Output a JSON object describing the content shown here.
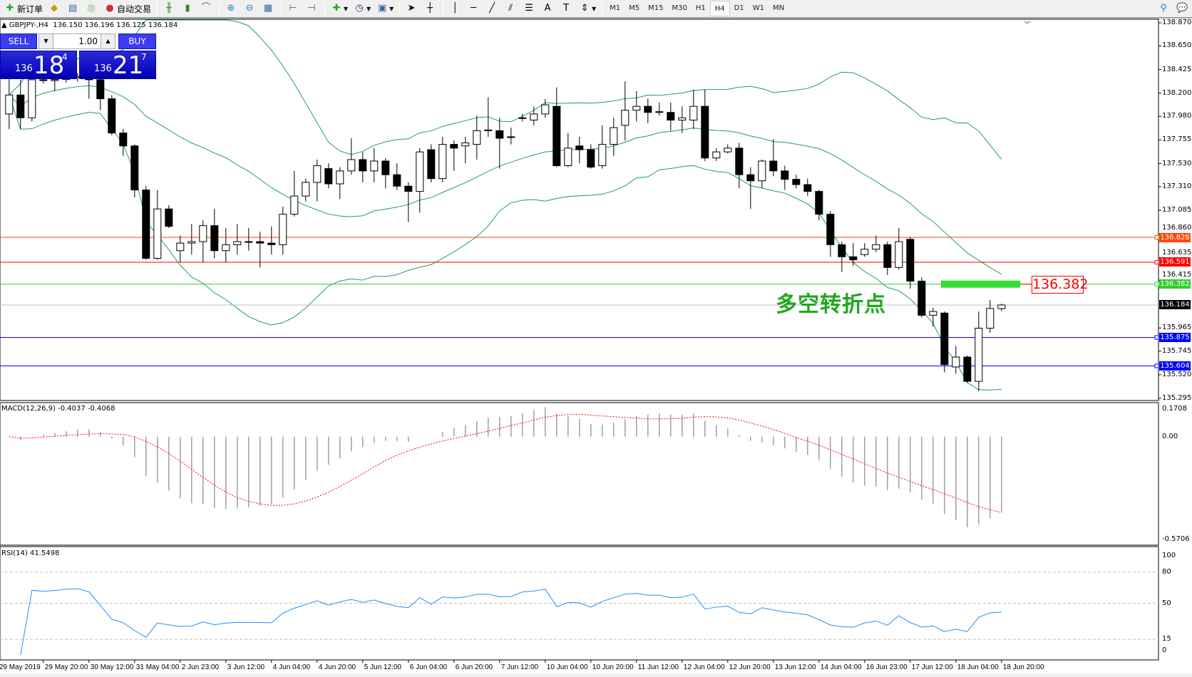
{
  "toolbar": {
    "new_order": "新订单",
    "auto_trade": "自动交易",
    "icons": [
      "new-order-icon",
      "navigator-icon",
      "market-watch-icon",
      "signals-icon",
      "auto-trading-icon",
      "bar-chart-icon",
      "candlestick-icon",
      "line-chart-icon",
      "zoom-in-icon",
      "zoom-out-icon",
      "tile-windows-icon",
      "chart-shift-icon",
      "autoscroll-icon",
      "indicators-icon",
      "periods-icon",
      "templates-icon",
      "cursor-icon",
      "crosshair-icon",
      "vertical-line-icon",
      "horizontal-line-icon",
      "trendline-icon",
      "equidistant-channel-icon",
      "fibonacci-icon",
      "text-icon",
      "text-label-icon",
      "arrows-icon",
      "search-icon",
      "chat-icon"
    ],
    "timeframes": [
      "M1",
      "M5",
      "M15",
      "M30",
      "H1",
      "H4",
      "D1",
      "W1",
      "MN"
    ],
    "active_timeframe": "H4"
  },
  "header": {
    "symbol": "GBPJPY-,H4",
    "ohlc": "136.150 136.196 136.125 136.184"
  },
  "trade_panel": {
    "sell": "SELL",
    "buy": "BUY",
    "lot": "1.00",
    "bid": {
      "big": "136",
      "main": "18",
      "pip": "4"
    },
    "ask": {
      "big": "136",
      "main": "21",
      "pip": "7"
    }
  },
  "annotation": {
    "text": "多空转折点",
    "level_label": "136.382",
    "color": "#1fa81f"
  },
  "chart_data": {
    "type": "candlestick",
    "symbol": "GBPJPY-",
    "timeframe": "H4",
    "ylim": [
      135.295,
      138.87
    ],
    "price_ticks": [
      "138.870",
      "138.650",
      "138.425",
      "138.200",
      "137.980",
      "137.755",
      "137.530",
      "137.310",
      "137.085",
      "136.860",
      "136.635",
      "136.415",
      "135.965",
      "135.745",
      "135.520",
      "135.295"
    ],
    "current_price": "136.184",
    "horizontal_lines": [
      {
        "price": "136.828",
        "color": "#ff4500"
      },
      {
        "price": "136.591",
        "color": "#ff0000"
      },
      {
        "price": "136.382",
        "color": "#32cd32"
      },
      {
        "price": "135.875",
        "color": "#0000ff"
      },
      {
        "price": "135.604",
        "color": "#0000ff"
      }
    ],
    "bollinger": {
      "period": 20,
      "deviation": 2,
      "color": "#20a050"
    },
    "time_labels": [
      "29 May 2019",
      "29 May 20:00",
      "30 May 12:00",
      "31 May 04:00",
      "2 Jun 23:00",
      "3 Jun 12:00",
      "4 Jun 04:00",
      "4 Jun 20:00",
      "5 Jun 12:00",
      "6 Jun 04:00",
      "6 Jun 20:00",
      "7 Jun 12:00",
      "10 Jun 04:00",
      "10 Jun 20:00",
      "11 Jun 12:00",
      "12 Jun 04:00",
      "12 Jun 20:00",
      "13 Jun 12:00",
      "14 Jun 04:00",
      "16 Jun 23:00",
      "17 Jun 12:00",
      "18 Jun 04:00",
      "18 Jun 20:00"
    ],
    "candles_ohlc": [
      [
        138.002,
        138.364,
        137.858,
        138.183
      ],
      [
        138.183,
        138.328,
        137.858,
        137.966
      ],
      [
        137.966,
        138.364,
        137.93,
        138.328
      ],
      [
        138.328,
        138.4,
        138.291,
        138.32
      ],
      [
        138.32,
        138.4,
        138.219,
        138.33
      ],
      [
        138.33,
        138.38,
        138.3,
        138.35
      ],
      [
        138.35,
        138.39,
        138.31,
        138.36
      ],
      [
        138.36,
        138.4,
        138.147,
        138.328
      ],
      [
        138.328,
        138.364,
        138.038,
        138.147
      ],
      [
        138.147,
        138.183,
        137.8,
        137.821
      ],
      [
        137.821,
        137.858,
        137.604,
        137.698
      ],
      [
        137.698,
        137.713,
        137.207,
        137.279
      ],
      [
        137.279,
        137.315,
        136.614,
        136.628
      ],
      [
        136.628,
        137.279,
        136.614,
        137.098
      ],
      [
        137.098,
        137.134,
        136.917,
        136.932
      ],
      [
        136.701,
        136.845,
        136.592,
        136.773
      ],
      [
        136.773,
        136.954,
        136.664,
        136.787
      ],
      [
        136.787,
        136.99,
        136.592,
        136.939
      ],
      [
        136.939,
        137.098,
        136.628,
        136.701
      ],
      [
        136.701,
        136.917,
        136.592,
        136.758
      ],
      [
        136.758,
        136.954,
        136.664,
        136.787
      ],
      [
        136.787,
        136.917,
        136.701,
        136.78
      ],
      [
        136.787,
        136.881,
        136.541,
        136.773
      ],
      [
        136.773,
        136.932,
        136.664,
        136.758
      ],
      [
        136.758,
        137.12,
        136.664,
        137.048
      ],
      [
        137.048,
        137.46,
        137.026,
        137.221
      ],
      [
        137.221,
        137.387,
        137.171,
        137.351
      ],
      [
        137.351,
        137.568,
        137.171,
        137.51
      ],
      [
        137.482,
        137.532,
        137.294,
        137.337
      ],
      [
        137.337,
        137.496,
        137.192,
        137.46
      ],
      [
        137.46,
        137.771,
        137.424,
        137.568
      ],
      [
        137.568,
        137.641,
        137.351,
        137.46
      ],
      [
        137.46,
        137.677,
        137.351,
        137.554
      ],
      [
        137.554,
        137.583,
        137.294,
        137.424
      ],
      [
        137.424,
        137.532,
        137.279,
        137.315
      ],
      [
        137.315,
        137.351,
        136.975,
        137.265
      ],
      [
        137.265,
        137.677,
        137.062,
        137.641
      ],
      [
        137.662,
        137.713,
        137.351,
        137.387
      ],
      [
        137.387,
        137.785,
        137.351,
        137.713
      ],
      [
        137.713,
        137.749,
        137.46,
        137.677
      ],
      [
        137.698,
        137.785,
        137.532,
        137.727
      ],
      [
        137.713,
        137.988,
        137.568,
        137.843
      ],
      [
        137.843,
        138.161,
        137.785,
        137.85
      ],
      [
        137.843,
        137.966,
        137.482,
        137.771
      ],
      [
        137.785,
        137.872,
        137.713,
        137.778
      ],
      [
        137.959,
        138.002,
        137.93,
        137.966
      ],
      [
        137.944,
        138.075,
        137.894,
        138.002
      ],
      [
        138.002,
        138.147,
        137.966,
        138.089
      ],
      [
        138.075,
        138.255,
        137.496,
        137.51
      ],
      [
        137.51,
        137.821,
        137.496,
        137.677
      ],
      [
        137.698,
        137.785,
        137.532,
        137.662
      ],
      [
        137.662,
        137.713,
        137.482,
        137.496
      ],
      [
        137.51,
        137.894,
        137.482,
        137.713
      ],
      [
        137.713,
        137.966,
        137.604,
        137.872
      ],
      [
        137.894,
        138.313,
        137.749,
        138.038
      ],
      [
        138.038,
        138.219,
        137.93,
        138.075
      ],
      [
        138.075,
        138.147,
        137.915,
        138.017
      ],
      [
        138.017,
        138.111,
        137.988,
        138.024
      ],
      [
        138.017,
        138.111,
        137.843,
        137.944
      ],
      [
        137.944,
        138.075,
        137.821,
        137.966
      ],
      [
        137.944,
        138.234,
        137.858,
        138.075
      ],
      [
        138.075,
        138.234,
        137.554,
        137.583
      ],
      [
        137.583,
        137.677,
        137.554,
        137.641
      ],
      [
        137.641,
        137.713,
        137.626,
        137.677
      ],
      [
        137.677,
        137.727,
        137.294,
        137.424
      ],
      [
        137.424,
        137.496,
        137.098,
        137.366
      ],
      [
        137.366,
        137.568,
        137.294,
        137.554
      ],
      [
        137.554,
        137.764,
        137.409,
        137.46
      ],
      [
        137.46,
        137.51,
        137.279,
        137.38
      ],
      [
        137.38,
        137.424,
        137.294,
        137.33
      ],
      [
        137.33,
        137.387,
        137.221,
        137.265
      ],
      [
        137.265,
        137.279,
        136.99,
        137.048
      ],
      [
        137.048,
        137.077,
        136.643,
        136.758
      ],
      [
        136.758,
        136.787,
        136.498,
        136.643
      ],
      [
        136.643,
        136.773,
        136.556,
        136.614
      ],
      [
        136.664,
        136.773,
        136.643,
        136.715
      ],
      [
        136.715,
        136.845,
        136.686,
        136.758
      ],
      [
        136.758,
        136.787,
        136.469,
        136.541
      ],
      [
        136.541,
        136.917,
        136.52,
        136.787
      ],
      [
        136.809,
        136.831,
        136.339,
        136.411
      ],
      [
        136.411,
        136.447,
        136.064,
        136.086
      ],
      [
        136.086,
        136.158,
        135.977,
        136.122
      ],
      [
        136.107,
        136.122,
        135.543,
        135.616
      ],
      [
        135.594,
        135.796,
        135.529,
        135.688
      ],
      [
        135.688,
        135.702,
        135.442,
        135.457
      ],
      [
        135.457,
        136.122,
        135.363,
        135.963
      ],
      [
        135.963,
        136.23,
        135.919,
        136.151
      ],
      [
        136.15,
        136.196,
        136.125,
        136.184
      ]
    ],
    "macd": {
      "label": "MACD(12,26,9) -0.4037 -0.4068",
      "ylim": [
        -0.5706,
        0.1708
      ],
      "ticks": [
        "0.1708",
        "0.00",
        "-0.5706"
      ],
      "histogram_color": "#a0a0a0",
      "signal_color": "#ff0000"
    },
    "rsi": {
      "label": "RSI(14) 41.5498",
      "ylim": [
        0,
        100
      ],
      "ticks": [
        "100",
        "80",
        "50",
        "15",
        "0"
      ],
      "levels": [
        80,
        50,
        15
      ],
      "color": "#1e90ff"
    }
  }
}
